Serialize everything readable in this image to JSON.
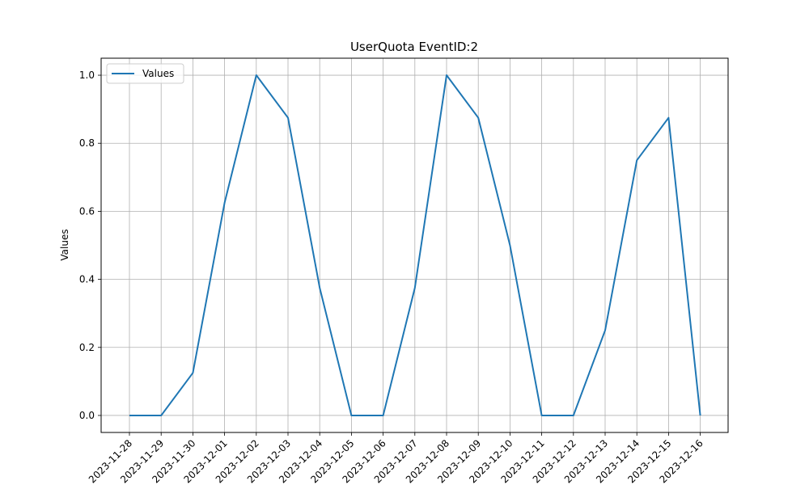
{
  "chart_data": {
    "type": "line",
    "title": "UserQuota EventID:2",
    "xlabel": "",
    "ylabel": "Values",
    "x": [
      "2023-11-28",
      "2023-11-29",
      "2023-11-30",
      "2023-12-01",
      "2023-12-02",
      "2023-12-03",
      "2023-12-04",
      "2023-12-05",
      "2023-12-06",
      "2023-12-07",
      "2023-12-08",
      "2023-12-09",
      "2023-12-10",
      "2023-12-11",
      "2023-12-12",
      "2023-12-13",
      "2023-12-14",
      "2023-12-15",
      "2023-12-16"
    ],
    "series": [
      {
        "name": "Values",
        "color": "#1f77b4",
        "values": [
          0.0,
          0.0,
          0.125,
          0.625,
          1.0,
          0.875,
          0.375,
          0.0,
          0.0,
          0.375,
          1.0,
          0.875,
          0.5,
          0.0,
          0.0,
          0.25,
          0.75,
          0.875,
          0.0
        ]
      }
    ],
    "ylim": [
      -0.05,
      1.05
    ],
    "yticks": [
      "0.0",
      "0.2",
      "0.4",
      "0.6",
      "0.8",
      "1.0"
    ],
    "grid": true,
    "legend_position": "upper-left"
  }
}
